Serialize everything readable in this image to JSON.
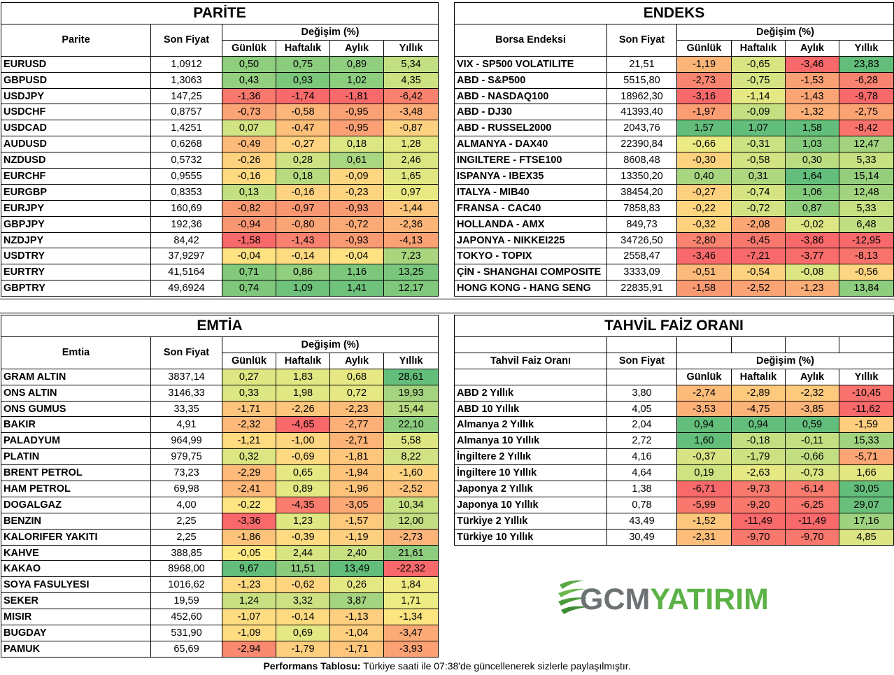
{
  "parite": {
    "title": "PARİTE",
    "col_name": "Parite",
    "col_price": "Son Fiyat",
    "change_header": "Değişim (%)",
    "periods": [
      "Günlük",
      "Haftalık",
      "Aylık",
      "Yıllık"
    ],
    "rows": [
      [
        "EURUSD",
        "1,0912",
        "0,50",
        "0,75",
        "0,89",
        "5,34"
      ],
      [
        "GBPUSD",
        "1,3063",
        "0,43",
        "0,93",
        "1,02",
        "4,35"
      ],
      [
        "USDJPY",
        "147,25",
        "-1,36",
        "-1,74",
        "-1,81",
        "-6,42"
      ],
      [
        "USDCHF",
        "0,8757",
        "-0,73",
        "-0,58",
        "-0,95",
        "-3,48"
      ],
      [
        "USDCAD",
        "1,4251",
        "0,07",
        "-0,47",
        "-0,95",
        "-0,87"
      ],
      [
        "AUDUSD",
        "0,6268",
        "-0,49",
        "-0,27",
        "0,18",
        "1,28"
      ],
      [
        "NZDUSD",
        "0,5732",
        "-0,26",
        "0,28",
        "0,61",
        "2,46"
      ],
      [
        "EURCHF",
        "0,9555",
        "-0,16",
        "0,18",
        "-0,09",
        "1,65"
      ],
      [
        "EURGBP",
        "0,8353",
        "0,13",
        "-0,16",
        "-0,23",
        "0,97"
      ],
      [
        "EURJPY",
        "160,69",
        "-0,82",
        "-0,97",
        "-0,93",
        "-1,44"
      ],
      [
        "GBPJPY",
        "192,36",
        "-0,94",
        "-0,80",
        "-0,72",
        "-2,36"
      ],
      [
        "NZDJPY",
        "84,42",
        "-1,58",
        "-1,43",
        "-0,93",
        "-4,13"
      ],
      [
        "USDTRY",
        "37,9297",
        "-0,04",
        "-0,14",
        "-0,04",
        "7,23"
      ],
      [
        "EURTRY",
        "41,5164",
        "0,71",
        "0,86",
        "1,16",
        "13,25"
      ],
      [
        "GBPTRY",
        "49,6924",
        "0,74",
        "1,09",
        "1,41",
        "12,17"
      ]
    ],
    "colors": [
      [
        "#8fce7f",
        "#8bcc7e",
        "#8fce7f",
        "#c3df83"
      ],
      [
        "#93cf7f",
        "#7cc77b",
        "#8dcd7e",
        "#cce282"
      ],
      [
        "#f8786d",
        "#f8696b",
        "#f8696b",
        "#f9826f"
      ],
      [
        "#fba475",
        "#fcb679",
        "#fba074",
        "#fcb078"
      ],
      [
        "#d2e383",
        "#fdc07a",
        "#fba074",
        "#fdd17f"
      ],
      [
        "#fdbb7a",
        "#fed280",
        "#dce683",
        "#e4e882"
      ],
      [
        "#fed17f",
        "#cee283",
        "#a9d680",
        "#dbe582"
      ],
      [
        "#feda81",
        "#b7da81",
        "#fed680",
        "#e0e783"
      ],
      [
        "#c2df81",
        "#fed280",
        "#fed480",
        "#e9e983"
      ],
      [
        "#fa9a73",
        "#fa9773",
        "#fa9a73",
        "#fdc67c"
      ],
      [
        "#fa9773",
        "#fba475",
        "#fba976",
        "#fcb579"
      ],
      [
        "#f8696b",
        "#f98170",
        "#fa9a73",
        "#faa273"
      ],
      [
        "#fee282",
        "#feda81",
        "#fee282",
        "#a9d57f"
      ],
      [
        "#83c97c",
        "#91ce7e",
        "#7cc77b",
        "#79c67c"
      ],
      [
        "#7fc77b",
        "#6fc27b",
        "#6fc27b",
        "#7fc87c"
      ]
    ]
  },
  "endeks": {
    "title": "ENDEKS",
    "col_name": "Borsa Endeksi",
    "col_price": "Son Fiyat",
    "change_header": "Değişim (%)",
    "periods": [
      "Günlük",
      "Haftalık",
      "Aylık",
      "Yıllık"
    ],
    "rows": [
      [
        "VIX  - SP500 VOLATILITE",
        "21,51",
        "-1,19",
        "-0,65",
        "-3,46",
        "23,83"
      ],
      [
        "ABD - S&P500",
        "5515,80",
        "-2,73",
        "-0,75",
        "-1,53",
        "-6,28"
      ],
      [
        "ABD - NASDAQ100",
        "18962,30",
        "-3,16",
        "-1,14",
        "-1,43",
        "-9,78"
      ],
      [
        "ABD - DJ30",
        "41393,40",
        "-1,97",
        "-0,09",
        "-1,32",
        "-2,75"
      ],
      [
        "ABD - RUSSEL2000",
        "2043,76",
        "1,57",
        "1,07",
        "1,58",
        "-8,42"
      ],
      [
        "ALMANYA - DAX40",
        "22390,84",
        "-0,66",
        "-0,31",
        "1,03",
        "12,47"
      ],
      [
        "INGILTERE - FTSE100",
        "8608,48",
        "-0,30",
        "-0,58",
        "0,30",
        "5,33"
      ],
      [
        "ISPANYA - IBEX35",
        "13350,20",
        "0,40",
        "0,31",
        "1,64",
        "15,14"
      ],
      [
        "ITALYA - MIB40",
        "38454,20",
        "-0,27",
        "-0,74",
        "1,06",
        "12,48"
      ],
      [
        "FRANSA - CAC40",
        "7858,83",
        "-0,22",
        "-0,72",
        "0,87",
        "5,33"
      ],
      [
        "HOLLANDA - AMX",
        "849,73",
        "-0,32",
        "-2,08",
        "-0,02",
        "6,48"
      ],
      [
        "JAPONYA - NIKKEI225",
        "34726,50",
        "-2,80",
        "-6,45",
        "-3,86",
        "-12,95"
      ],
      [
        "TOKYO - TOPIX",
        "2558,47",
        "-3,46",
        "-7,21",
        "-3,77",
        "-8,13"
      ],
      [
        "ÇİN - SHANGHAI COMPOSITE",
        "3333,09",
        "-0,51",
        "-0,54",
        "-0,08",
        "-0,56"
      ],
      [
        "HONG KONG - HANG SENG",
        "22835,91",
        "-1,58",
        "-2,52",
        "-1,23",
        "13,84"
      ]
    ],
    "colors": [
      [
        "#fcb579",
        "#d9e583",
        "#f8696b",
        "#63be7b"
      ],
      [
        "#f98570",
        "#d5e383",
        "#fba074",
        "#f98370"
      ],
      [
        "#f8696b",
        "#e5e883",
        "#fba575",
        "#f8696b"
      ],
      [
        "#fa9d73",
        "#c2df81",
        "#fcb078",
        "#fba273"
      ],
      [
        "#63be7b",
        "#63be7b",
        "#63be7b",
        "#f9736d"
      ],
      [
        "#ecea83",
        "#cbe282",
        "#85ca7d",
        "#a3d37f"
      ],
      [
        "#fdd27f",
        "#d1e383",
        "#bcdc81",
        "#c7e182"
      ],
      [
        "#a8d57f",
        "#aed780",
        "#63be7b",
        "#95cf7e"
      ],
      [
        "#fdd07f",
        "#d5e383",
        "#83c97c",
        "#a3d37f"
      ],
      [
        "#fed680",
        "#d3e383",
        "#91ce7e",
        "#c7e182"
      ],
      [
        "#fed17f",
        "#fca575",
        "#dde683",
        "#c1df82"
      ],
      [
        "#f98370",
        "#f9786d",
        "#f8696b",
        "#f8696b"
      ],
      [
        "#f8696b",
        "#f8696b",
        "#f86c6b",
        "#f9736d"
      ],
      [
        "#fcbb7a",
        "#fed380",
        "#dde683",
        "#fed580"
      ],
      [
        "#fa9a73",
        "#fba374",
        "#fbad77",
        "#8fcd7e"
      ]
    ]
  },
  "emtia": {
    "title": "EMTİA",
    "col_name": "Emtia",
    "col_price": "Son Fiyat",
    "change_header": "Değişim (%)",
    "periods": [
      "Günlük",
      "Haftalık",
      "Aylık",
      "Yıllık"
    ],
    "rows": [
      [
        "GRAM ALTIN",
        "3837,14",
        "0,27",
        "1,83",
        "0,68",
        "28,61"
      ],
      [
        "ONS ALTIN",
        "3146,33",
        "0,33",
        "1,98",
        "0,72",
        "19,93"
      ],
      [
        "ONS GUMUS",
        "33,35",
        "-1,71",
        "-2,26",
        "-2,23",
        "15,44"
      ],
      [
        "BAKIR",
        "4,91",
        "-2,32",
        "-4,65",
        "-2,77",
        "22,10"
      ],
      [
        "PALADYUM",
        "964,99",
        "-1,21",
        "-1,00",
        "-2,71",
        "5,58"
      ],
      [
        "PLATIN",
        "979,75",
        "0,32",
        "-0,69",
        "-1,81",
        "8,22"
      ],
      [
        "BRENT PETROL",
        "73,23",
        "-2,29",
        "0,65",
        "-1,94",
        "-1,60"
      ],
      [
        "HAM PETROL",
        "69,98",
        "-2,41",
        "0,89",
        "-1,96",
        "-2,52"
      ],
      [
        "DOGALGAZ",
        "4,00",
        "-0,22",
        "-4,35",
        "-3,05",
        "10,34"
      ],
      [
        "BENZIN",
        "2,25",
        "-3,36",
        "1,23",
        "-1,57",
        "12,00"
      ],
      [
        "KALORIFER YAKITI",
        "2,25",
        "-1,86",
        "-0,39",
        "-1,19",
        "-2,73"
      ],
      [
        "KAHVE",
        "388,85",
        "-0,05",
        "2,44",
        "2,40",
        "21,61"
      ],
      [
        "KAKAO",
        "8968,00",
        "9,67",
        "11,51",
        "13,49",
        "-22,32"
      ],
      [
        "SOYA FASULYESI",
        "1016,62",
        "-1,23",
        "-0,62",
        "0,26",
        "1,84"
      ],
      [
        "SEKER",
        "19,59",
        "1,24",
        "3,32",
        "3,87",
        "1,71"
      ],
      [
        "MISIR",
        "452,60",
        "-1,07",
        "-0,14",
        "-1,13",
        "-1,34"
      ],
      [
        "BUGDAY",
        "531,90",
        "-1,09",
        "0,69",
        "-1,04",
        "-3,47"
      ],
      [
        "PAMUK",
        "65,69",
        "-2,94",
        "-1,79",
        "-1,71",
        "-3,93"
      ]
    ],
    "colors": [
      [
        "#dde683",
        "#e1e783",
        "#e6e883",
        "#63be7b"
      ],
      [
        "#dce683",
        "#e0e783",
        "#e6e883",
        "#a4d47f"
      ],
      [
        "#fdc57b",
        "#fdc67c",
        "#fcbd7a",
        "#b8db81"
      ],
      [
        "#fdb979",
        "#f8696b",
        "#fcb078",
        "#8ccc7e"
      ],
      [
        "#feda81",
        "#fed580",
        "#fcb378",
        "#dee683"
      ],
      [
        "#dbe683",
        "#fed981",
        "#fdc67c",
        "#d0e283"
      ],
      [
        "#fdba79",
        "#e6e883",
        "#fdc37b",
        "#fed27f"
      ],
      [
        "#fdb779",
        "#e3e883",
        "#fdc37b",
        "#fdc27b"
      ],
      [
        "#fee583",
        "#f97c6f",
        "#fca976",
        "#c7e082"
      ],
      [
        "#f8696b",
        "#dfe783",
        "#fdc97c",
        "#c3de82"
      ],
      [
        "#fdc37b",
        "#feda81",
        "#fdd07f",
        "#fcb478"
      ],
      [
        "#fee983",
        "#d8e583",
        "#c7e082",
        "#8ecd7e"
      ],
      [
        "#63be7b",
        "#8cca7e",
        "#63be7b",
        "#f8696b"
      ],
      [
        "#feda81",
        "#fed680",
        "#e3e883",
        "#efea83"
      ],
      [
        "#c8e082",
        "#cde183",
        "#a4d47f",
        "#edeb83"
      ],
      [
        "#fedd82",
        "#fedb81",
        "#fdcf7f",
        "#fde582"
      ],
      [
        "#fedd82",
        "#e4e883",
        "#fdd07f",
        "#fbaa76"
      ],
      [
        "#f98a71",
        "#fdcf7f",
        "#fdc67c",
        "#fba174"
      ]
    ]
  },
  "tahvil": {
    "title": "TAHVİL FAİZ ORANI",
    "col_name": "Tahvil Faiz Oranı",
    "col_price": "Son Fiyat",
    "change_header": "Değişim (%)",
    "periods": [
      "Günlük",
      "Haftalık",
      "Aylık",
      "Yıllık"
    ],
    "rows": [
      [
        "ABD 2 Yıllık",
        "3,80",
        "-2,74",
        "-2,89",
        "-2,32",
        "-10,45"
      ],
      [
        "ABD 10 Yıllık",
        "4,05",
        "-3,53",
        "-4,75",
        "-3,85",
        "-11,62"
      ],
      [
        "Almanya 2 Yıllık",
        "2,04",
        "0,94",
        "0,94",
        "0,59",
        "-1,59"
      ],
      [
        "Almanya 10 Yıllık",
        "2,72",
        "1,60",
        "-0,18",
        "-0,11",
        "15,33"
      ],
      [
        "İngiltere 2 Yıllık",
        "4,16",
        "-0,37",
        "-1,79",
        "-0,66",
        "-5,71"
      ],
      [
        "İngiltere 10 Yıllık",
        "4,64",
        "0,19",
        "-2,63",
        "-0,73",
        "1,66"
      ],
      [
        "Japonya 2 Yıllık",
        "1,38",
        "-6,71",
        "-9,73",
        "-6,14",
        "30,05"
      ],
      [
        "Japonya 10 Yıllık",
        "0,78",
        "-5,99",
        "-9,20",
        "-6,25",
        "29,07"
      ],
      [
        "Türkiye 2 Yıllık",
        "43,49",
        "-1,52",
        "-11,49",
        "-11,49",
        "17,16"
      ],
      [
        "Türkiye 10 Yıllık",
        "30,49",
        "-2,31",
        "-9,70",
        "-9,70",
        "4,85"
      ]
    ],
    "colors": [
      [
        "#fdbb7a",
        "#fdca7d",
        "#fdca7d",
        "#f9726d"
      ],
      [
        "#fdb178",
        "#fcb378",
        "#fcb579",
        "#f8696b"
      ],
      [
        "#63be7b",
        "#63be7b",
        "#63be7b",
        "#fdce7e"
      ],
      [
        "#63be7b",
        "#c4df82",
        "#c4df82",
        "#a0d27f"
      ],
      [
        "#d8e483",
        "#cde183",
        "#c2de82",
        "#fca575"
      ],
      [
        "#d0e383",
        "#e6e883",
        "#dbe583",
        "#e3e782"
      ],
      [
        "#f8696b",
        "#f87a6e",
        "#f97c6f",
        "#63be7b"
      ],
      [
        "#f9786d",
        "#f9786d",
        "#f9776e",
        "#69c07b"
      ],
      [
        "#fec67c",
        "#f8696b",
        "#f8696b",
        "#9fd27f"
      ],
      [
        "#fcbe7a",
        "#f9786d",
        "#f9786d",
        "#dbe583"
      ]
    ]
  },
  "logo": {
    "text_left": "GCM",
    "text_right": "YATIRIM"
  },
  "footer": {
    "bold": "Performans Tablosu:",
    "text": " Türkiye saati ile 07:38'de güncellenerek sizlerle paylaşılmıştır."
  }
}
